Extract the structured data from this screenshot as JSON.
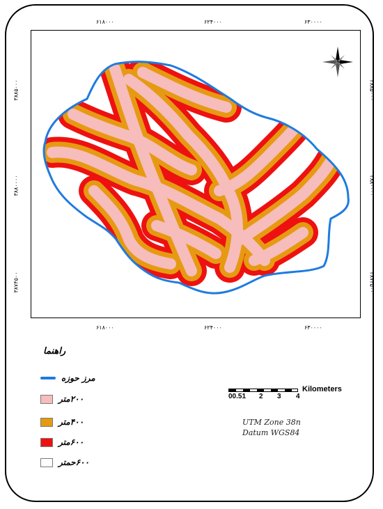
{
  "map": {
    "top_ticks": [
      "۶۱۸۰۰۰",
      "۶۲۴۰۰۰",
      "۶۳۰۰۰۰"
    ],
    "bottom_ticks": [
      "۶۱۸۰۰۰",
      "۶۲۴۰۰۰",
      "۶۳۰۰۰۰"
    ],
    "left_ticks": [
      "۳۸۸۵۰۰۰",
      "۳۸۸۰۰۰۰",
      "۳۸۷۴۵۰۰"
    ],
    "right_ticks": [
      "۳۸۸۵۰۰۰",
      "۳۸۸۰۰۰۰",
      "۳۸۷۴۵۰۰"
    ],
    "colors": {
      "boundary": "#1e7be0",
      "buffer_200": "#f7bcbc",
      "buffer_400": "#e69a12",
      "buffer_600": "#ee1111",
      "beyond_600": "#ffffff"
    },
    "north_arrow_icon": "compass-rose-icon"
  },
  "legend": {
    "title": "راهنما",
    "items": [
      {
        "label": "مرز حوزه",
        "kind": "line",
        "color": "#1e7be0"
      },
      {
        "label": "۲۰۰متر",
        "kind": "swatch",
        "color": "#f7bcbc"
      },
      {
        "label": "۴۰۰متر",
        "kind": "swatch",
        "color": "#e69a12"
      },
      {
        "label": "۶۰۰متر",
        "kind": "swatch",
        "color": "#ee1111"
      },
      {
        "label": "۶۰۰حمتر",
        "kind": "swatch",
        "color": "#ffffff"
      }
    ]
  },
  "scale": {
    "unit": "Kilometers",
    "labels": [
      "00.51",
      "2",
      "3",
      "4"
    ]
  },
  "projection": {
    "line1": "UTM Zone 38n",
    "line2": "Datum WGS84"
  }
}
